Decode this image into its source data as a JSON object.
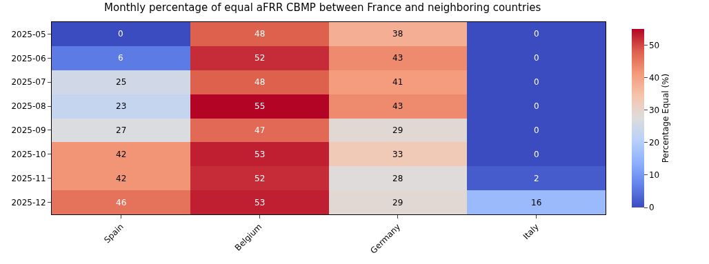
{
  "chart_data": {
    "type": "heatmap",
    "title": "Monthly percentage of equal aFRR CBMP between France and neighboring countries",
    "categories": [
      "Spain",
      "Belgium",
      "Germany",
      "Italy"
    ],
    "y_categories": [
      "2025-05",
      "2025-06",
      "2025-07",
      "2025-08",
      "2025-09",
      "2025-10",
      "2025-11",
      "2025-12"
    ],
    "cells": [
      [
        0,
        48,
        38,
        0
      ],
      [
        6,
        52,
        43,
        0
      ],
      [
        25,
        48,
        41,
        0
      ],
      [
        23,
        55,
        43,
        0
      ],
      [
        27,
        47,
        29,
        0
      ],
      [
        42,
        53,
        33,
        0
      ],
      [
        42,
        52,
        28,
        2
      ],
      [
        46,
        53,
        29,
        16
      ]
    ],
    "data_labels": true,
    "clabel": "Percentage Equal (%)",
    "clim": [
      0,
      55
    ],
    "cticks": [
      0,
      10,
      20,
      30,
      40,
      50
    ]
  }
}
